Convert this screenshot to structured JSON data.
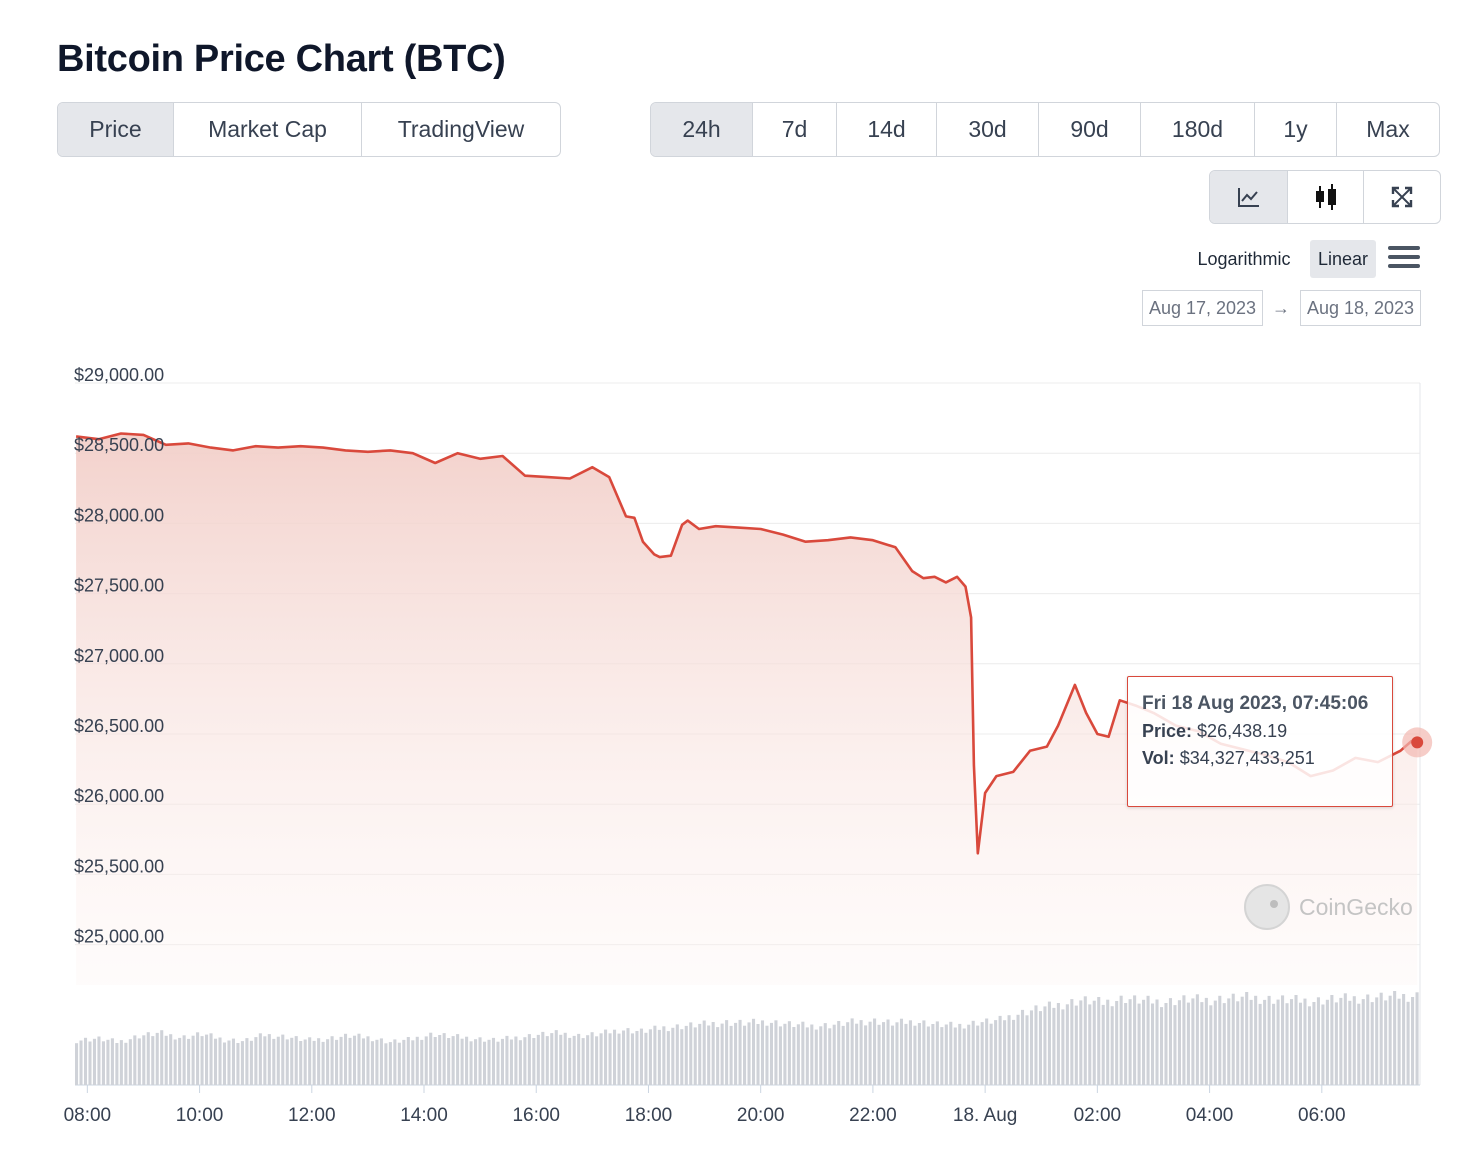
{
  "title": "Bitcoin Price Chart (BTC)",
  "type_tabs": [
    {
      "label": "Price",
      "active": true
    },
    {
      "label": "Market Cap",
      "active": false
    },
    {
      "label": "TradingView",
      "active": false
    }
  ],
  "range_tabs": [
    {
      "label": "24h",
      "active": true
    },
    {
      "label": "7d",
      "active": false
    },
    {
      "label": "14d",
      "active": false
    },
    {
      "label": "30d",
      "active": false
    },
    {
      "label": "90d",
      "active": false
    },
    {
      "label": "180d",
      "active": false
    },
    {
      "label": "1y",
      "active": false
    },
    {
      "label": "Max",
      "active": false
    }
  ],
  "view_buttons": [
    {
      "icon": "line-chart-icon",
      "active": true
    },
    {
      "icon": "candlestick-icon",
      "active": false
    },
    {
      "icon": "expand-icon",
      "active": false
    }
  ],
  "scale": {
    "log_label": "Logarithmic",
    "linear_label": "Linear",
    "selected": "Linear"
  },
  "date_range": {
    "from": "Aug 17, 2023",
    "arrow": "→",
    "to": "Aug 18, 2023"
  },
  "tooltip": {
    "date": "Fri 18 Aug 2023, 07:45:06",
    "price_label": "Price:",
    "price_value": "$26,438.19",
    "vol_label": "Vol:",
    "vol_value": "$34,327,433,251"
  },
  "watermark": "CoinGecko",
  "colors": {
    "line": "#d9493c",
    "fill_top": "#f5d6d2",
    "volume": "#cfd2d8",
    "grid": "#ececec"
  },
  "chart_data": {
    "type": "area",
    "y_ticks": [
      "$29,000.00",
      "$28,500.00",
      "$28,000.00",
      "$27,500.00",
      "$27,000.00",
      "$26,500.00",
      "$26,000.00",
      "$25,500.00",
      "$25,000.00"
    ],
    "y_tick_values": [
      29000,
      28500,
      28000,
      27500,
      27000,
      26500,
      26000,
      25500,
      25000
    ],
    "ylim": [
      24000,
      29000
    ],
    "x_ticks": [
      "08:00",
      "10:00",
      "12:00",
      "14:00",
      "16:00",
      "18:00",
      "20:00",
      "22:00",
      "18. Aug",
      "02:00",
      "04:00",
      "06:00"
    ],
    "x_tick_hours": [
      8,
      10,
      12,
      14,
      16,
      18,
      20,
      22,
      24,
      26,
      28,
      30
    ],
    "x_range_hours": [
      7.78,
      31.75
    ],
    "series": [
      {
        "x": [
          7.8,
          8.2,
          8.6,
          9.0,
          9.4,
          9.8,
          10.2,
          10.6,
          11.0,
          11.4,
          11.8,
          12.2,
          12.6,
          13.0,
          13.4,
          13.8,
          14.2,
          14.6,
          15.0,
          15.4,
          15.8,
          16.2,
          16.6,
          17.0,
          17.3,
          17.6,
          17.75,
          17.9,
          18.1,
          18.2,
          18.4,
          18.6,
          18.7,
          18.9,
          19.2,
          19.6,
          20.0,
          20.4,
          20.8,
          21.2,
          21.6,
          22.0,
          22.4,
          22.7,
          22.9,
          23.1,
          23.3,
          23.5,
          23.65,
          23.75,
          23.8,
          23.87,
          24.0,
          24.2,
          24.5,
          24.8,
          25.1,
          25.3,
          25.6,
          25.8,
          26.0,
          26.2,
          26.4,
          26.7,
          27.0,
          27.4,
          27.8,
          28.2,
          28.6,
          29.0,
          29.4,
          29.8,
          30.2,
          30.6,
          31.0,
          31.4,
          31.6,
          31.7
        ],
        "values": [
          28620,
          28600,
          28640,
          28630,
          28560,
          28570,
          28540,
          28520,
          28550,
          28540,
          28550,
          28540,
          28520,
          28510,
          28520,
          28500,
          28430,
          28500,
          28460,
          28480,
          28340,
          28330,
          28320,
          28400,
          28330,
          28050,
          28040,
          27870,
          27780,
          27760,
          27770,
          27990,
          28020,
          27960,
          27980,
          27970,
          27960,
          27920,
          27870,
          27880,
          27900,
          27880,
          27830,
          27660,
          27610,
          27620,
          27580,
          27620,
          27550,
          27330,
          26280,
          25650,
          26080,
          26200,
          26230,
          26380,
          26410,
          26560,
          26850,
          26650,
          26500,
          26480,
          26740,
          26700,
          26650,
          26560,
          26520,
          26430,
          26390,
          26350,
          26300,
          26200,
          26240,
          26330,
          26300,
          26380,
          26450,
          26440
        ]
      },
      {
        "name": "Vol",
        "values": [
          0.5,
          0.52,
          0.48,
          0.55,
          0.58,
          0.53,
          0.57,
          0.51,
          0.49,
          0.56,
          0.54,
          0.5,
          0.52,
          0.55,
          0.53,
          0.48,
          0.51,
          0.57,
          0.54,
          0.52,
          0.5,
          0.53,
          0.56,
          0.58,
          0.55,
          0.57,
          0.62,
          0.6,
          0.64,
          0.66,
          0.68,
          0.7,
          0.69,
          0.71,
          0.68,
          0.66,
          0.67,
          0.7,
          0.72,
          0.69,
          0.71,
          0.68,
          0.66,
          0.7,
          0.72,
          0.8,
          0.86,
          0.9,
          0.95,
          0.92,
          0.97,
          0.94,
          0.93,
          0.96,
          0.95,
          0.97,
          0.98,
          0.96,
          0.95,
          0.94,
          0.96,
          0.97,
          0.98,
          0.99,
          1.0
        ]
      }
    ],
    "xlabel": "",
    "ylabel": "",
    "grid": true,
    "legend": "none"
  }
}
